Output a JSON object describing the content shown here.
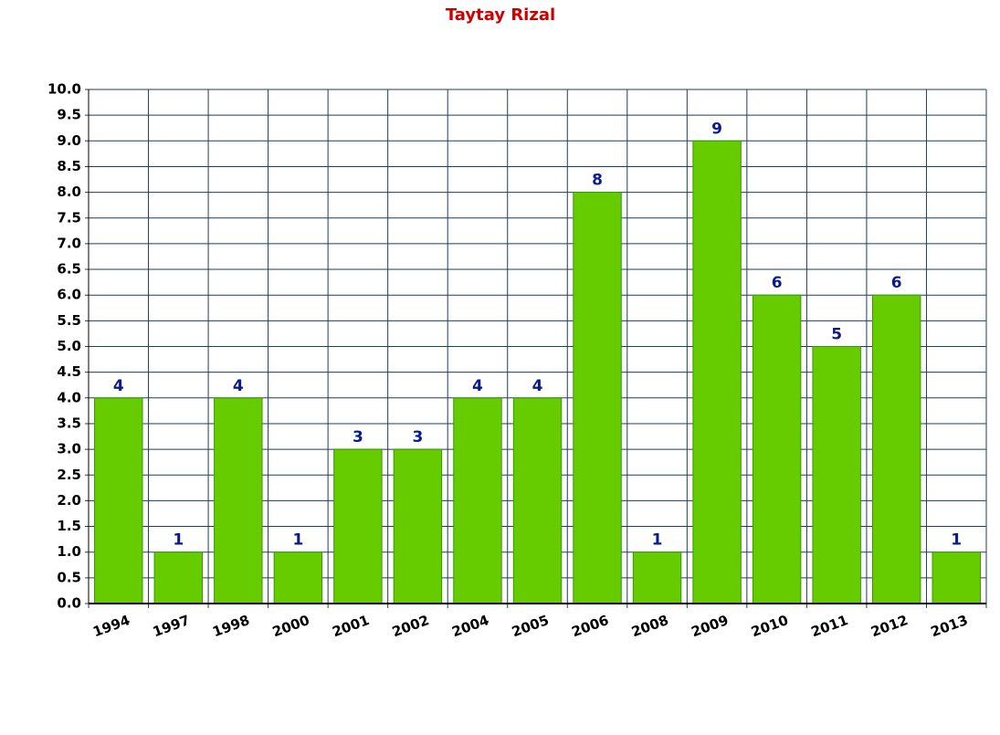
{
  "chart_data": {
    "type": "bar",
    "title": "Taytay Rizal",
    "categories": [
      "1994",
      "1997",
      "1998",
      "2000",
      "2001",
      "2002",
      "2004",
      "2005",
      "2006",
      "2008",
      "2009",
      "2010",
      "2011",
      "2012",
      "2013"
    ],
    "values": [
      4,
      1,
      4,
      1,
      3,
      3,
      4,
      4,
      8,
      1,
      9,
      6,
      5,
      6,
      1
    ],
    "color": "#66cc00",
    "ylim": [
      0,
      10
    ],
    "yticks": [
      {
        "value": 0,
        "label": "0.0"
      },
      {
        "value": 0.5,
        "label": "0.5"
      },
      {
        "value": 1,
        "label": "1.0"
      },
      {
        "value": 1.5,
        "label": "1.5"
      },
      {
        "value": 2,
        "label": "2.0"
      },
      {
        "value": 2.5,
        "label": "2.5"
      },
      {
        "value": 3,
        "label": "3.0"
      },
      {
        "value": 3.5,
        "label": "3.5"
      },
      {
        "value": 4,
        "label": "4.0"
      },
      {
        "value": 4.5,
        "label": "4.5"
      },
      {
        "value": 5,
        "label": "5.0"
      },
      {
        "value": 5.5,
        "label": "5.5"
      },
      {
        "value": 6,
        "label": "6.0"
      },
      {
        "value": 6.5,
        "label": "6.5"
      },
      {
        "value": 7,
        "label": "7.0"
      },
      {
        "value": 7.5,
        "label": "7.5"
      },
      {
        "value": 8,
        "label": "8.0"
      },
      {
        "value": 8.5,
        "label": "8.5"
      },
      {
        "value": 9,
        "label": "9.0"
      },
      {
        "value": 9.5,
        "label": "9.5"
      },
      {
        "value": 10,
        "label": "10.0"
      }
    ],
    "grid": true
  }
}
